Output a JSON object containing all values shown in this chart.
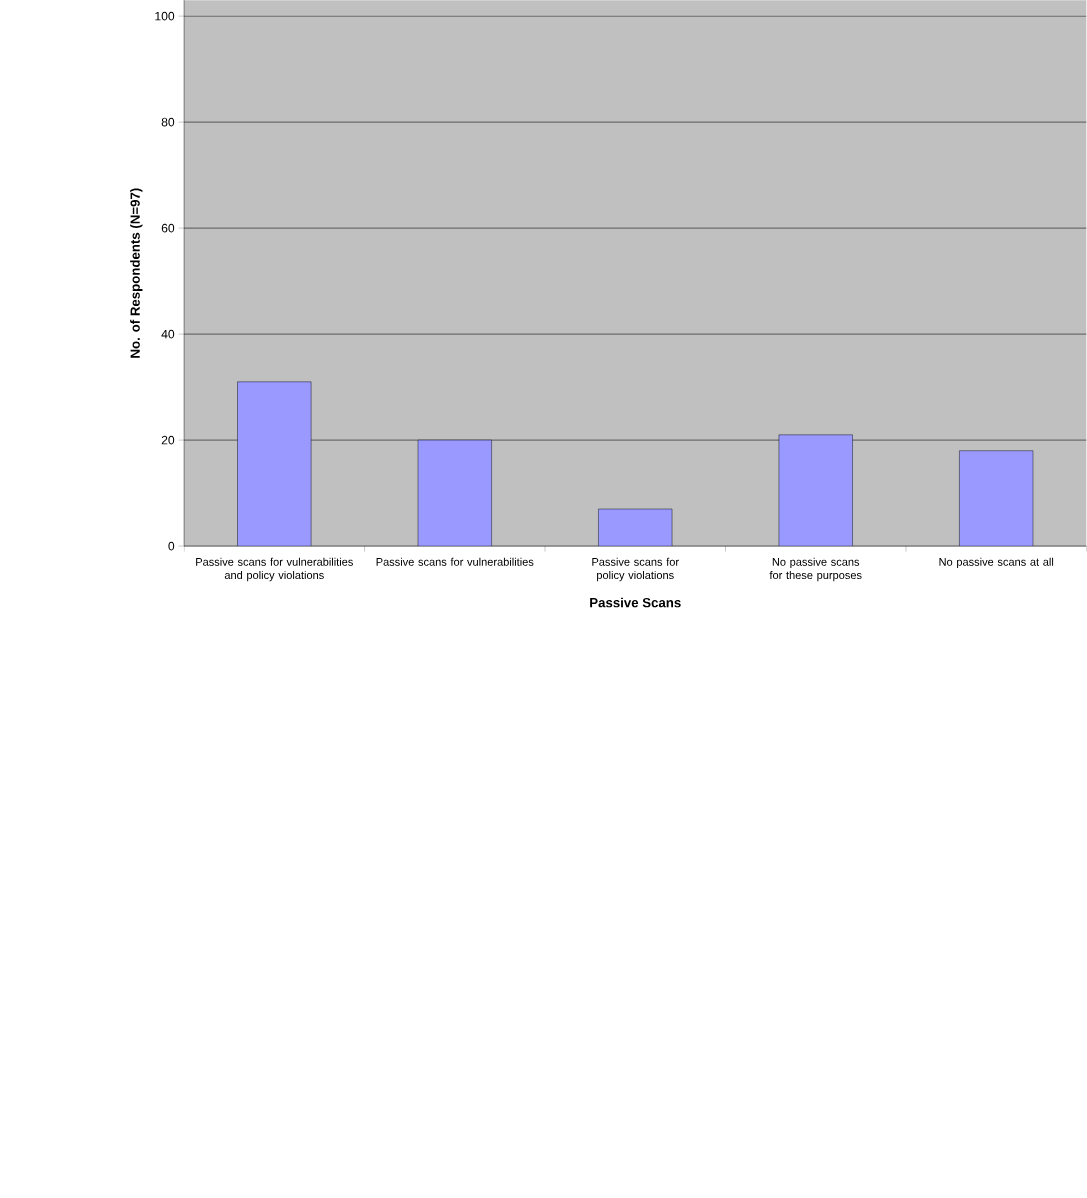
{
  "chart_data": {
    "type": "bar",
    "xlabel": "Passive Scans",
    "ylabel": "No. of Respondents (N=97)",
    "categories": [
      "Passive scans for vulnerabilities and policy violations",
      "Passive scans for vulnerabilities",
      "Passive scans for policy violations",
      "No passive scans for these purposes",
      "No passive scans at all"
    ],
    "values": [
      31,
      20,
      7,
      21,
      18
    ],
    "color": "#9999ff",
    "ylim": [
      0,
      103
    ],
    "yticks": [
      0,
      20,
      40,
      60,
      80,
      100
    ],
    "grid": "y"
  }
}
